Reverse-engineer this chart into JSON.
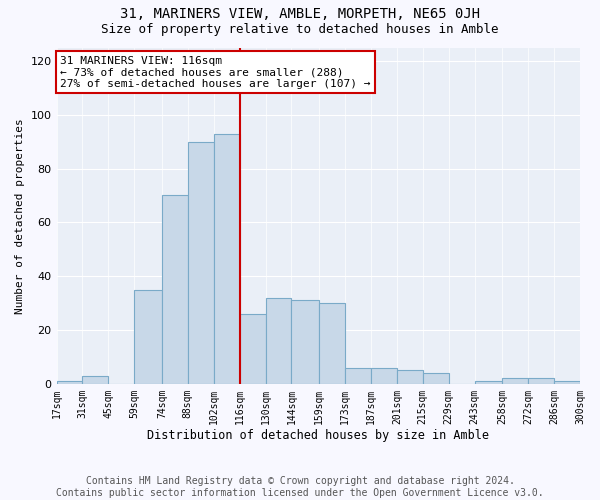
{
  "title": "31, MARINERS VIEW, AMBLE, MORPETH, NE65 0JH",
  "subtitle": "Size of property relative to detached houses in Amble",
  "xlabel": "Distribution of detached houses by size in Amble",
  "ylabel": "Number of detached properties",
  "bin_labels": [
    "17sqm",
    "31sqm",
    "45sqm",
    "59sqm",
    "74sqm",
    "88sqm",
    "102sqm",
    "116sqm",
    "130sqm",
    "144sqm",
    "159sqm",
    "173sqm",
    "187sqm",
    "201sqm",
    "215sqm",
    "229sqm",
    "243sqm",
    "258sqm",
    "272sqm",
    "286sqm",
    "300sqm"
  ],
  "bin_left_edges": [
    17,
    31,
    45,
    59,
    74,
    88,
    102,
    116,
    130,
    144,
    159,
    173,
    187,
    201,
    215,
    229,
    243,
    258,
    272,
    286,
    300
  ],
  "bar_heights": [
    1,
    3,
    0,
    35,
    70,
    90,
    93,
    26,
    32,
    31,
    30,
    6,
    6,
    5,
    4,
    0,
    1,
    2,
    2,
    1,
    1
  ],
  "bar_color": "#c8d8e8",
  "bar_edgecolor": "#7aaac8",
  "property_value": 116,
  "vline_color": "#cc0000",
  "annotation_text": "31 MARINERS VIEW: 116sqm\n← 73% of detached houses are smaller (288)\n27% of semi-detached houses are larger (107) →",
  "annotation_box_edgecolor": "#cc0000",
  "ylim": [
    0,
    125
  ],
  "yticks": [
    0,
    20,
    40,
    60,
    80,
    100,
    120
  ],
  "background_color": "#eaeff7",
  "fig_background_color": "#f8f8ff",
  "footer_text": "Contains HM Land Registry data © Crown copyright and database right 2024.\nContains public sector information licensed under the Open Government Licence v3.0.",
  "title_fontsize": 10,
  "subtitle_fontsize": 9,
  "annotation_fontsize": 8,
  "footer_fontsize": 7,
  "ylabel_fontsize": 8,
  "xlabel_fontsize": 8.5,
  "ytick_fontsize": 8,
  "xtick_fontsize": 7
}
